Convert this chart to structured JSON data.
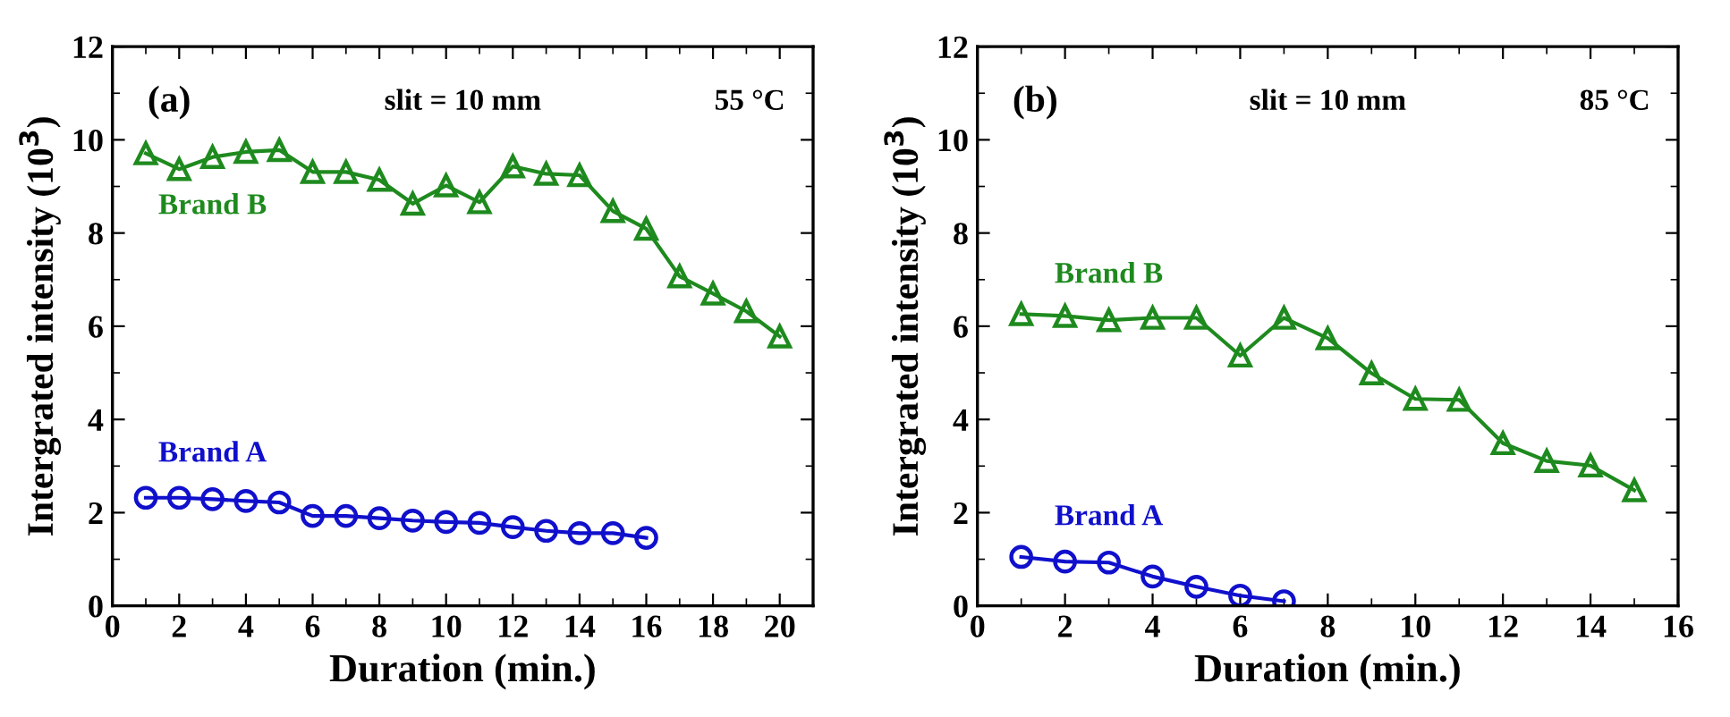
{
  "chart_data": [
    {
      "type": "line",
      "xlabel": "Duration (min.)",
      "ylabel": "Intergrated intensity (10$^{3}$)",
      "xlim": [
        0,
        21
      ],
      "xticks": [
        0,
        2,
        4,
        6,
        8,
        10,
        12,
        14,
        16,
        18,
        20
      ],
      "ylim": [
        0,
        12
      ],
      "yticks": [
        0,
        2,
        4,
        6,
        8,
        10,
        12
      ],
      "grid": false,
      "legend": false,
      "line_style": "solid",
      "annotations": [
        "(a)",
        "slit = 10 mm",
        "55 °C"
      ],
      "series": [
        {
          "name": "Brand B",
          "color": "#1e8a1e",
          "marker": "triangle",
          "x": [
            1,
            2,
            3,
            4,
            5,
            6,
            7,
            8,
            9,
            10,
            11,
            12,
            13,
            14,
            15,
            16,
            17,
            18,
            19,
            20
          ],
          "values": [
            9.71,
            9.37,
            9.63,
            9.74,
            9.78,
            9.31,
            9.31,
            9.14,
            8.63,
            9.02,
            8.66,
            9.43,
            9.27,
            9.24,
            8.47,
            8.09,
            7.07,
            6.7,
            6.32,
            5.78
          ]
        },
        {
          "name": "Brand A",
          "color": "#1010cc",
          "marker": "circle",
          "x": [
            1,
            2,
            3,
            4,
            5,
            6,
            7,
            8,
            9,
            10,
            11,
            12,
            13,
            14,
            15,
            16
          ],
          "values": [
            2.32,
            2.32,
            2.29,
            2.25,
            2.22,
            1.93,
            1.93,
            1.88,
            1.83,
            1.8,
            1.78,
            1.69,
            1.61,
            1.56,
            1.56,
            1.46
          ]
        }
      ]
    },
    {
      "type": "line",
      "xlabel": "Duration (min.)",
      "ylabel": "Intergrated intensity (10$^{3}$)",
      "xlim": [
        0,
        16
      ],
      "xticks": [
        0,
        2,
        4,
        6,
        8,
        10,
        12,
        14,
        16
      ],
      "ylim": [
        0,
        12
      ],
      "yticks": [
        0,
        2,
        4,
        6,
        8,
        10,
        12
      ],
      "grid": false,
      "legend": false,
      "line_style": "solid",
      "annotations": [
        "(b)",
        "slit = 10 mm",
        "85 °C"
      ],
      "series": [
        {
          "name": "Brand B",
          "color": "#1e8a1e",
          "marker": "triangle",
          "x": [
            1,
            2,
            3,
            4,
            5,
            6,
            7,
            8,
            9,
            10,
            11,
            12,
            13,
            14,
            15
          ],
          "values": [
            6.26,
            6.22,
            6.13,
            6.18,
            6.18,
            5.37,
            6.18,
            5.74,
            4.99,
            4.44,
            4.42,
            3.49,
            3.11,
            3.01,
            2.48
          ]
        },
        {
          "name": "Brand A",
          "color": "#1010cc",
          "marker": "circle",
          "x": [
            1,
            2,
            3,
            4,
            5,
            6,
            7
          ],
          "values": [
            1.05,
            0.95,
            0.93,
            0.63,
            0.41,
            0.22,
            0.1
          ]
        }
      ]
    }
  ]
}
